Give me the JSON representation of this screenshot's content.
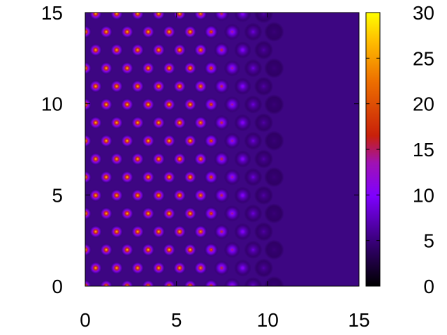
{
  "chart_data": {
    "type": "heatmap",
    "title": "",
    "xlabel": "",
    "ylabel": "",
    "xlim": [
      0,
      15
    ],
    "ylim": [
      0,
      15
    ],
    "x_ticks": [
      "0",
      "5",
      "10",
      "15"
    ],
    "y_ticks": [
      "0",
      "5",
      "10",
      "15"
    ],
    "colorbar": {
      "range": [
        0,
        30
      ],
      "ticks": [
        "0",
        "5",
        "10",
        "15",
        "20",
        "25",
        "30"
      ],
      "palette": "black-purple-red-yellow"
    },
    "field": {
      "lattice": "hexagonal",
      "spacing": 1.15,
      "background_value": 4,
      "peak_value": 30,
      "fade_start_x": 6,
      "fade_end_x": 11
    },
    "colors": {
      "axis": "#000000",
      "background": "#ffffff"
    }
  }
}
